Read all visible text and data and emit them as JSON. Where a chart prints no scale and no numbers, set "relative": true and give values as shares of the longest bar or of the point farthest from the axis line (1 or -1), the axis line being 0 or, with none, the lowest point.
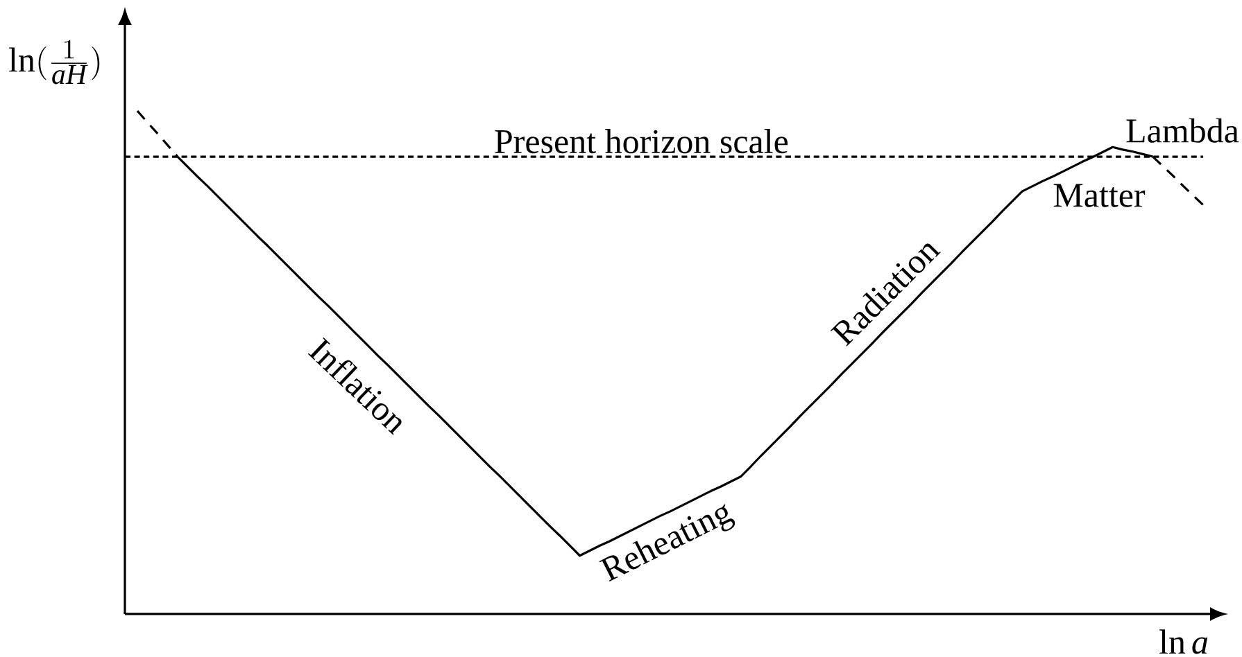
{
  "chart_data": {
    "type": "line",
    "relative": true,
    "xlabel": "\\ln a",
    "ylabel": "\\ln(\\frac{1}{aH})",
    "categories": [
      null,
      null,
      null,
      null,
      null,
      null,
      null,
      null,
      null,
      null,
      null,
      null,
      null,
      null,
      null,
      null,
      null,
      null,
      null,
      null,
      null,
      null,
      null,
      null,
      null,
      null,
      null,
      null,
      null,
      null,
      null,
      null,
      null,
      null,
      null,
      null,
      null,
      null,
      null,
      null,
      null,
      null,
      null,
      null,
      null,
      null,
      null,
      null,
      null,
      null,
      null,
      null,
      null,
      null,
      null,
      null,
      null,
      null,
      null,
      null,
      null,
      null,
      null,
      null,
      null,
      null,
      null,
      null,
      null,
      null,
      null,
      null,
      null,
      null,
      null,
      null,
      null,
      null,
      null,
      null,
      null,
      null,
      null,
      null,
      null,
      null,
      null,
      null,
      null,
      null,
      null,
      null,
      null,
      null,
      null,
      null,
      null,
      null,
      null,
      null,
      null,
      null,
      null,
      null,
      null,
      null,
      null
    ],
    "series": [
      {
        "color": "#000000",
        "line_style": "dashed",
        "values": [
          1,
          0.977,
          0.955,
          0.932,
          0.909,
          null,
          null,
          null,
          null,
          null,
          null,
          null,
          null,
          null,
          null,
          null,
          null,
          null,
          null,
          null,
          null,
          null,
          null,
          null,
          null,
          null,
          null,
          null,
          null,
          null,
          null,
          null,
          null,
          null,
          null,
          null,
          null,
          null,
          null,
          null,
          null,
          null,
          null,
          null,
          null,
          null,
          null,
          null,
          null,
          null,
          null,
          null,
          null,
          null,
          null,
          null,
          null,
          null,
          null,
          null,
          null,
          null,
          null,
          null,
          null,
          null,
          null,
          null,
          null,
          null,
          null,
          null,
          null,
          null,
          null,
          null,
          null,
          null,
          null,
          null,
          null,
          null,
          null,
          null,
          null,
          null,
          null,
          null,
          null,
          null,
          null,
          null,
          null,
          null,
          null,
          null,
          null,
          null,
          null,
          null,
          null,
          null,
          null,
          null,
          null,
          null,
          null
        ]
      },
      {
        "color": "#000000",
        "line_style": "solid",
        "values": [
          null,
          null,
          null,
          null,
          0.909,
          0.889,
          0.869,
          0.85,
          0.83,
          0.81,
          0.79,
          0.77,
          0.75,
          0.731,
          0.711,
          0.691,
          0.671,
          0.651,
          0.631,
          0.612,
          0.592,
          0.572,
          0.552,
          0.532,
          0.512,
          0.493,
          0.473,
          0.453,
          0.433,
          0.413,
          0.394,
          0.374,
          0.354,
          0.334,
          0.314,
          0.294,
          0.275,
          0.255,
          0.235,
          0.215,
          0.195,
          0.175,
          0.156,
          0.136,
          0.116,
          0.126,
          0.136,
          0.145,
          0.155,
          0.165,
          0.175,
          0.185,
          0.195,
          0.204,
          0.214,
          0.224,
          0.234,
          0.244,
          0.253,
          0.263,
          0.273,
          0.293,
          0.314,
          0.334,
          0.354,
          0.374,
          0.395,
          0.415,
          0.435,
          0.455,
          0.476,
          0.496,
          0.516,
          0.536,
          0.557,
          0.577,
          0.597,
          0.617,
          0.638,
          0.658,
          0.678,
          0.698,
          0.719,
          0.739,
          0.759,
          0.779,
          0.8,
          0.82,
          0.84,
          0.85,
          0.86,
          0.869,
          0.879,
          0.889,
          0.899,
          0.908,
          0.918,
          0.928,
          0.923,
          0.919,
          0.914,
          0.909,
          null,
          null,
          null,
          null,
          null
        ]
      },
      {
        "color": "#000000",
        "line_style": "dashed",
        "values": [
          null,
          null,
          null,
          null,
          null,
          null,
          null,
          null,
          null,
          null,
          null,
          null,
          null,
          null,
          null,
          null,
          null,
          null,
          null,
          null,
          null,
          null,
          null,
          null,
          null,
          null,
          null,
          null,
          null,
          null,
          null,
          null,
          null,
          null,
          null,
          null,
          null,
          null,
          null,
          null,
          null,
          null,
          null,
          null,
          null,
          null,
          null,
          null,
          null,
          null,
          null,
          null,
          null,
          null,
          null,
          null,
          null,
          null,
          null,
          null,
          null,
          null,
          null,
          null,
          null,
          null,
          null,
          null,
          null,
          null,
          null,
          null,
          null,
          null,
          null,
          null,
          null,
          null,
          null,
          null,
          null,
          null,
          null,
          null,
          null,
          null,
          null,
          null,
          null,
          null,
          null,
          null,
          null,
          null,
          null,
          null,
          null,
          null,
          null,
          null,
          null,
          0.909,
          0.89,
          0.871,
          0.851,
          0.832,
          0.813
        ]
      }
    ],
    "ref_lines": [
      {
        "axis": "y",
        "value": 0.909,
        "label": "Present horizon scale",
        "line_style": "dotted",
        "color": "#000000"
      }
    ],
    "annotations": [
      "Inflation",
      "Reheating",
      "Radiation",
      "Matter",
      "Lambda"
    ]
  }
}
